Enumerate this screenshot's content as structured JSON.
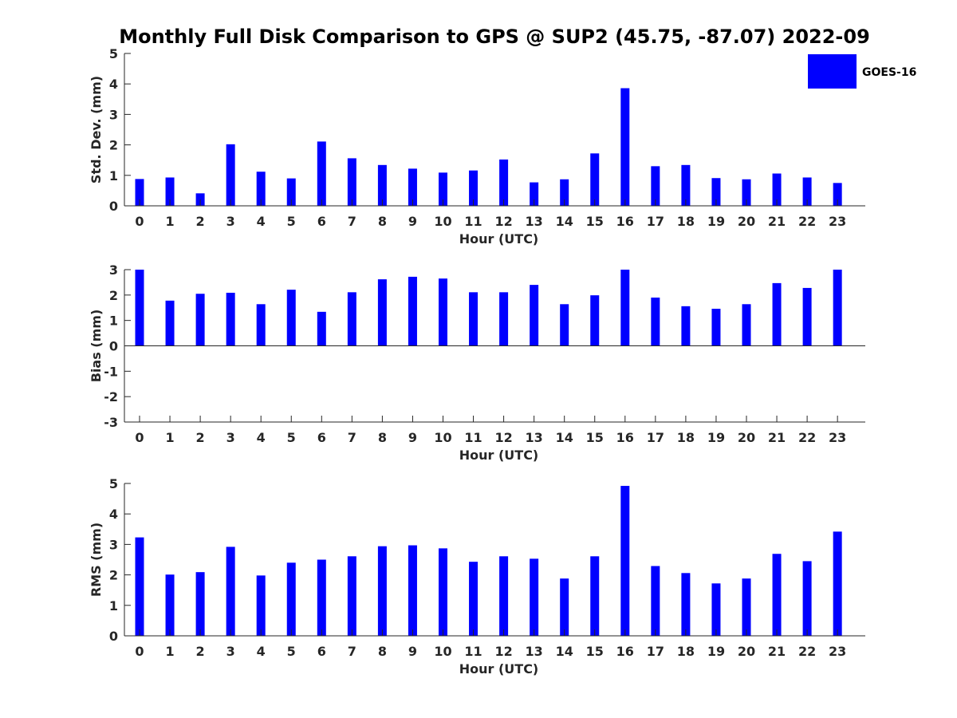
{
  "title": "Monthly Full Disk Comparison to GPS @ SUP2 (45.75, -87.07) 2022-09",
  "legend": {
    "label": "GOES-16",
    "color": "#0000ff",
    "placement": "top-right"
  },
  "chart_data": [
    {
      "type": "bar",
      "xlabel": "Hour (UTC)",
      "ylabel": "Std. Dev. (mm)",
      "ylim": [
        0,
        5
      ],
      "yticks": [
        0,
        1,
        2,
        3,
        4,
        5
      ],
      "categories": [
        "0",
        "1",
        "2",
        "3",
        "4",
        "5",
        "6",
        "7",
        "8",
        "9",
        "10",
        "11",
        "12",
        "13",
        "14",
        "15",
        "16",
        "17",
        "18",
        "19",
        "20",
        "21",
        "22",
        "23"
      ],
      "series": [
        {
          "name": "GOES-16",
          "color": "#0000ff",
          "values": [
            0.88,
            0.93,
            0.41,
            2.02,
            1.12,
            0.9,
            2.11,
            1.56,
            1.34,
            1.22,
            1.09,
            1.16,
            1.52,
            0.77,
            0.87,
            1.72,
            3.86,
            1.3,
            1.34,
            0.91,
            0.87,
            1.06,
            0.93,
            0.75
          ]
        }
      ]
    },
    {
      "type": "bar",
      "xlabel": "Hour (UTC)",
      "ylabel": "Bias (mm)",
      "ylim": [
        -3,
        3
      ],
      "yticks": [
        -3,
        -2,
        -1,
        0,
        1,
        2,
        3
      ],
      "categories": [
        "0",
        "1",
        "2",
        "3",
        "4",
        "5",
        "6",
        "7",
        "8",
        "9",
        "10",
        "11",
        "12",
        "13",
        "14",
        "15",
        "16",
        "17",
        "18",
        "19",
        "20",
        "21",
        "22",
        "23"
      ],
      "series": [
        {
          "name": "GOES-16",
          "color": "#0000ff",
          "values": [
            3.0,
            1.78,
            2.05,
            2.09,
            1.64,
            2.21,
            1.34,
            2.11,
            2.62,
            2.72,
            2.65,
            2.11,
            2.11,
            2.4,
            1.64,
            1.99,
            3.0,
            1.9,
            1.56,
            1.46,
            1.64,
            2.47,
            2.28,
            3.0
          ]
        }
      ]
    },
    {
      "type": "bar",
      "xlabel": "Hour (UTC)",
      "ylabel": "RMS (mm)",
      "ylim": [
        0,
        5
      ],
      "yticks": [
        0,
        1,
        2,
        3,
        4,
        5
      ],
      "categories": [
        "0",
        "1",
        "2",
        "3",
        "4",
        "5",
        "6",
        "7",
        "8",
        "9",
        "10",
        "11",
        "12",
        "13",
        "14",
        "15",
        "16",
        "17",
        "18",
        "19",
        "20",
        "21",
        "22",
        "23"
      ],
      "series": [
        {
          "name": "GOES-16",
          "color": "#0000ff",
          "values": [
            3.23,
            2.01,
            2.09,
            2.92,
            1.98,
            2.4,
            2.5,
            2.61,
            2.94,
            2.97,
            2.87,
            2.43,
            2.61,
            2.53,
            1.88,
            2.61,
            4.92,
            2.29,
            2.06,
            1.72,
            1.88,
            2.69,
            2.45,
            3.42
          ]
        }
      ]
    }
  ]
}
